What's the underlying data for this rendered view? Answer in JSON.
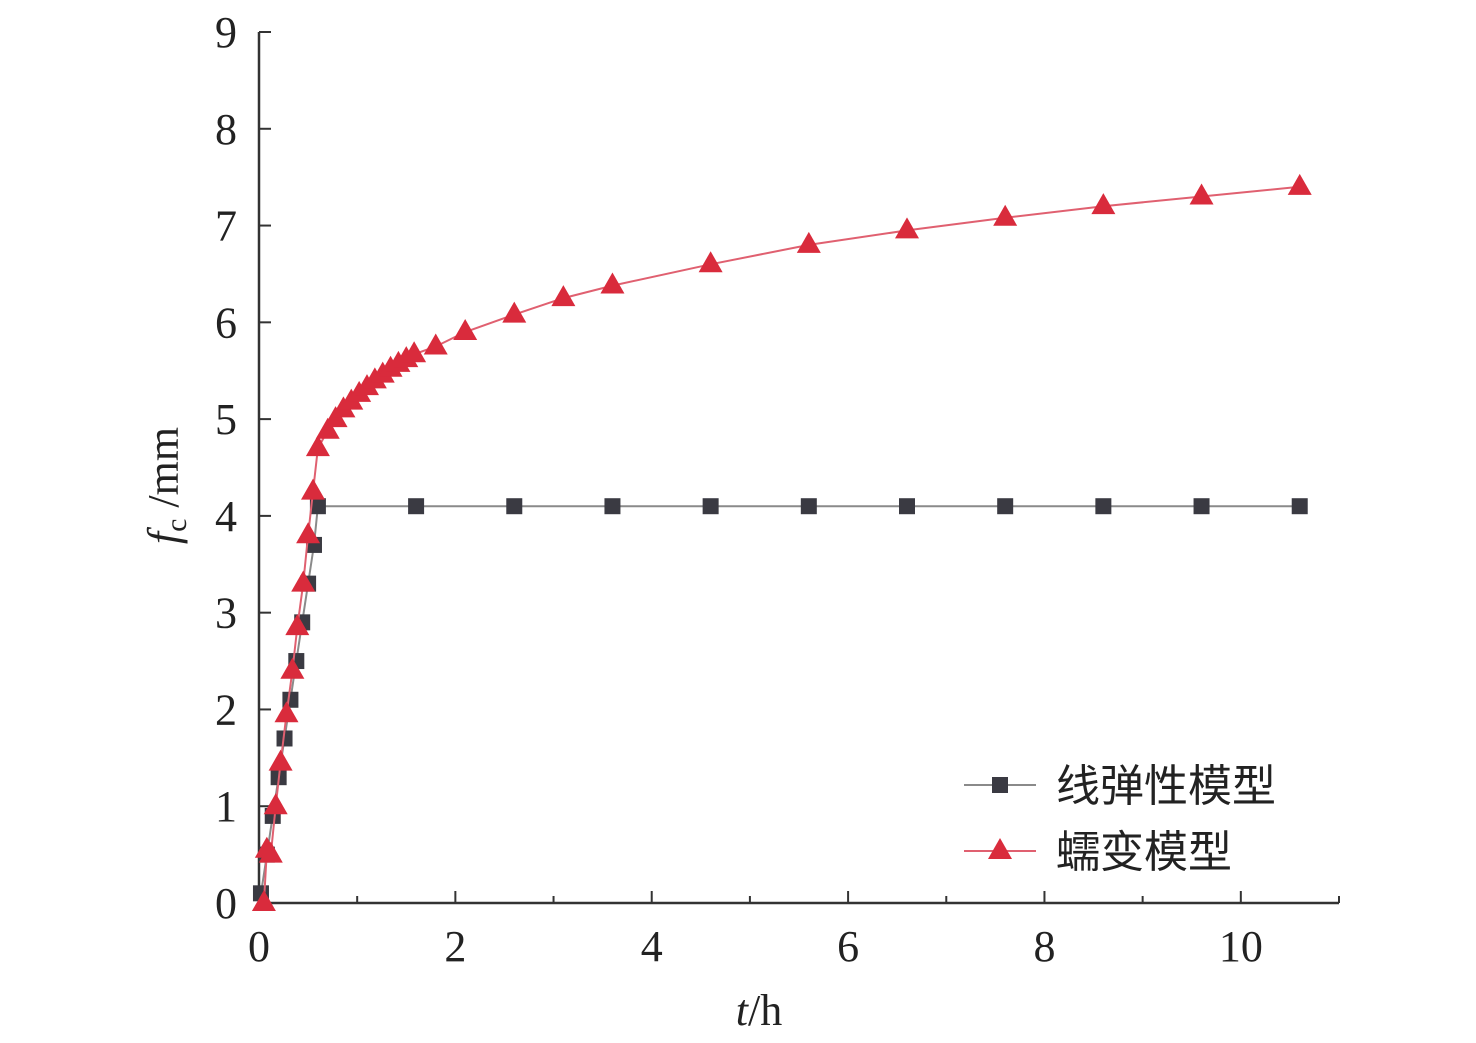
{
  "chart_data": {
    "type": "line",
    "xlabel": {
      "var": "t",
      "unit": "/h"
    },
    "ylabel": {
      "var": "f",
      "sub": "c",
      "unit": " /mm"
    },
    "xlim": [
      0,
      11
    ],
    "ylim": [
      0,
      9
    ],
    "x_ticks": [
      0,
      2,
      4,
      6,
      8,
      10
    ],
    "y_ticks": [
      0,
      1,
      2,
      3,
      4,
      5,
      6,
      7,
      8,
      9
    ],
    "grid": false,
    "legend_position": "bottom-right",
    "series": [
      {
        "name": "线弹性模型",
        "color": "#3a3a42",
        "line_color": "#8a8a8a",
        "marker": "square",
        "x": [
          0.02,
          0.08,
          0.14,
          0.2,
          0.26,
          0.32,
          0.38,
          0.44,
          0.5,
          0.56,
          0.6,
          1.6,
          2.6,
          3.6,
          4.6,
          5.6,
          6.6,
          7.6,
          8.6,
          9.6,
          10.6
        ],
        "y": [
          0.1,
          0.5,
          0.9,
          1.3,
          1.7,
          2.1,
          2.5,
          2.9,
          3.3,
          3.7,
          4.1,
          4.1,
          4.1,
          4.1,
          4.1,
          4.1,
          4.1,
          4.1,
          4.1,
          4.1,
          4.1
        ]
      },
      {
        "name": "蠕变模型",
        "color": "#d92b3c",
        "line_color": "#e06070",
        "marker": "triangle",
        "x": [
          0.05,
          0.08,
          0.12,
          0.17,
          0.22,
          0.28,
          0.34,
          0.39,
          0.45,
          0.5,
          0.55,
          0.6,
          0.7,
          0.78,
          0.86,
          0.94,
          1.02,
          1.1,
          1.18,
          1.26,
          1.34,
          1.42,
          1.5,
          1.58,
          1.8,
          2.1,
          2.6,
          3.1,
          3.6,
          4.6,
          5.6,
          6.6,
          7.6,
          8.6,
          9.6,
          10.6
        ],
        "y": [
          0.0,
          0.55,
          0.5,
          1.0,
          1.45,
          1.95,
          2.4,
          2.85,
          3.3,
          3.8,
          4.25,
          4.7,
          4.88,
          5.0,
          5.1,
          5.18,
          5.26,
          5.33,
          5.4,
          5.46,
          5.52,
          5.57,
          5.62,
          5.67,
          5.75,
          5.9,
          6.08,
          6.25,
          6.38,
          6.6,
          6.8,
          6.95,
          7.08,
          7.2,
          7.3,
          7.4
        ]
      }
    ]
  }
}
